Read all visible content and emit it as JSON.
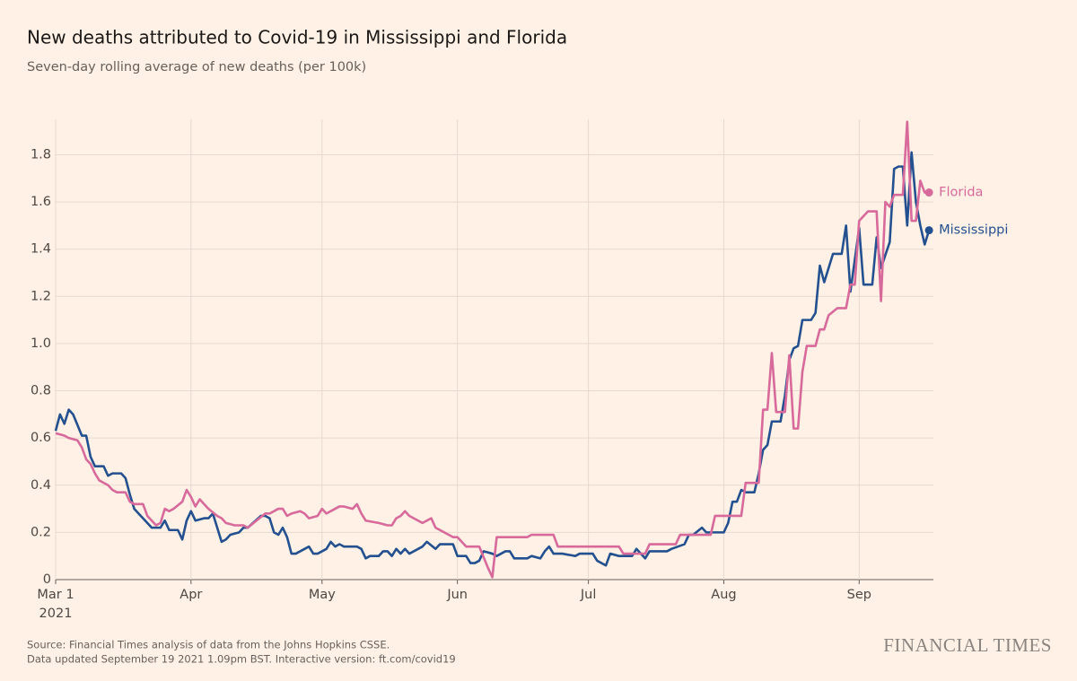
{
  "chart_data": {
    "type": "line",
    "title": "New deaths attributed to Covid-19 in Mississippi and Florida",
    "subtitle": "Seven-day rolling average of new deaths (per 100k)",
    "source": "Source: Financial Times analysis of data from the Johns Hopkins CSSE.",
    "note": "Data updated September 19 2021 1.09pm BST. Interactive version: ft.com/covid19",
    "brand": "FINANCIAL TIMES",
    "xlim": [
      "2021-03-01",
      "2021-09-18"
    ],
    "xticks": [
      {
        "value": "2021-03-01",
        "label": "Mar 1\n2021"
      },
      {
        "value": "2021-04-01",
        "label": "Apr"
      },
      {
        "value": "2021-05-01",
        "label": "May"
      },
      {
        "value": "2021-06-01",
        "label": "Jun"
      },
      {
        "value": "2021-07-01",
        "label": "Jul"
      },
      {
        "value": "2021-08-01",
        "label": "Aug"
      },
      {
        "value": "2021-09-01",
        "label": "Sep"
      }
    ],
    "ylim": [
      0,
      1.95
    ],
    "yticks": [
      0,
      0.2,
      0.4,
      0.6,
      0.8,
      {
        "value": 1,
        "label": "1.0"
      },
      1.2,
      1.4,
      1.6,
      1.8
    ],
    "grid": true,
    "series": [
      {
        "name": "Mississippi",
        "color": "#23508f",
        "x": [
          "2021-03-01",
          "2021-03-02",
          "2021-03-03",
          "2021-03-04",
          "2021-03-05",
          "2021-03-07",
          "2021-03-08",
          "2021-03-09",
          "2021-03-10",
          "2021-03-12",
          "2021-03-13",
          "2021-03-14",
          "2021-03-16",
          "2021-03-17",
          "2021-03-18",
          "2021-03-19",
          "2021-03-21",
          "2021-03-23",
          "2021-03-25",
          "2021-03-26",
          "2021-03-27",
          "2021-03-29",
          "2021-03-30",
          "2021-03-31",
          "2021-04-01",
          "2021-04-02",
          "2021-04-04",
          "2021-04-05",
          "2021-04-06",
          "2021-04-07",
          "2021-04-08",
          "2021-04-09",
          "2021-04-10",
          "2021-04-12",
          "2021-04-13",
          "2021-04-14",
          "2021-04-17",
          "2021-04-18",
          "2021-04-19",
          "2021-04-20",
          "2021-04-21",
          "2021-04-22",
          "2021-04-23",
          "2021-04-24",
          "2021-04-25",
          "2021-04-27",
          "2021-04-28",
          "2021-04-29",
          "2021-04-30",
          "2021-05-02",
          "2021-05-03",
          "2021-05-04",
          "2021-05-05",
          "2021-05-06",
          "2021-05-09",
          "2021-05-10",
          "2021-05-11",
          "2021-05-12",
          "2021-05-14",
          "2021-05-15",
          "2021-05-16",
          "2021-05-17",
          "2021-05-18",
          "2021-05-19",
          "2021-05-20",
          "2021-05-21",
          "2021-05-22",
          "2021-05-24",
          "2021-05-25",
          "2021-05-27",
          "2021-05-28",
          "2021-05-31",
          "2021-06-01",
          "2021-06-03",
          "2021-06-04",
          "2021-06-05",
          "2021-06-06",
          "2021-06-07",
          "2021-06-09",
          "2021-06-10",
          "2021-06-12",
          "2021-06-13",
          "2021-06-14",
          "2021-06-15",
          "2021-06-17",
          "2021-06-18",
          "2021-06-20",
          "2021-06-21",
          "2021-06-22",
          "2021-06-23",
          "2021-06-25",
          "2021-06-28",
          "2021-06-29",
          "2021-07-02",
          "2021-07-03",
          "2021-07-05",
          "2021-07-06",
          "2021-07-08",
          "2021-07-11",
          "2021-07-12",
          "2021-07-14",
          "2021-07-15",
          "2021-07-19",
          "2021-07-20",
          "2021-07-23",
          "2021-07-24",
          "2021-07-25",
          "2021-07-27",
          "2021-07-28",
          "2021-07-29",
          "2021-07-31",
          "2021-08-01",
          "2021-08-02",
          "2021-08-03",
          "2021-08-04",
          "2021-08-05",
          "2021-08-06",
          "2021-08-08",
          "2021-08-09",
          "2021-08-10",
          "2021-08-11",
          "2021-08-12",
          "2021-08-14",
          "2021-08-15",
          "2021-08-16",
          "2021-08-17",
          "2021-08-18",
          "2021-08-19",
          "2021-08-21",
          "2021-08-22",
          "2021-08-23",
          "2021-08-24",
          "2021-08-26",
          "2021-08-28",
          "2021-08-29",
          "2021-08-30",
          "2021-09-01",
          "2021-09-02",
          "2021-09-04",
          "2021-09-05",
          "2021-09-06",
          "2021-09-08",
          "2021-09-09",
          "2021-09-10",
          "2021-09-11",
          "2021-09-12",
          "2021-09-13",
          "2021-09-14",
          "2021-09-15",
          "2021-09-16",
          "2021-09-17"
        ],
        "values": [
          0.63,
          0.7,
          0.66,
          0.72,
          0.7,
          0.61,
          0.61,
          0.52,
          0.48,
          0.48,
          0.44,
          0.45,
          0.45,
          0.43,
          0.36,
          0.3,
          0.26,
          0.22,
          0.22,
          0.25,
          0.21,
          0.21,
          0.17,
          0.25,
          0.29,
          0.25,
          0.26,
          0.26,
          0.28,
          0.22,
          0.16,
          0.17,
          0.19,
          0.2,
          0.22,
          0.22,
          0.27,
          0.27,
          0.26,
          0.2,
          0.19,
          0.22,
          0.18,
          0.11,
          0.11,
          0.13,
          0.14,
          0.11,
          0.11,
          0.13,
          0.16,
          0.14,
          0.15,
          0.14,
          0.14,
          0.13,
          0.09,
          0.1,
          0.1,
          0.12,
          0.12,
          0.1,
          0.13,
          0.11,
          0.13,
          0.11,
          0.12,
          0.14,
          0.16,
          0.13,
          0.15,
          0.15,
          0.1,
          0.1,
          0.07,
          0.07,
          0.08,
          0.12,
          0.11,
          0.1,
          0.12,
          0.12,
          0.09,
          0.09,
          0.09,
          0.1,
          0.09,
          0.12,
          0.14,
          0.11,
          0.11,
          0.1,
          0.11,
          0.11,
          0.08,
          0.06,
          0.11,
          0.1,
          0.1,
          0.13,
          0.09,
          0.12,
          0.12,
          0.13,
          0.15,
          0.19,
          0.19,
          0.22,
          0.2,
          0.2,
          0.2,
          0.2,
          0.24,
          0.33,
          0.33,
          0.38,
          0.37,
          0.37,
          0.45,
          0.55,
          0.57,
          0.67,
          0.67,
          0.78,
          0.93,
          0.98,
          0.99,
          1.1,
          1.1,
          1.13,
          1.33,
          1.26,
          1.38,
          1.38,
          1.5,
          1.22,
          1.49,
          1.25,
          1.25,
          1.45,
          1.32,
          1.43,
          1.74,
          1.75,
          1.75,
          1.5,
          1.81,
          1.6,
          1.5,
          1.42,
          1.48
        ]
      },
      {
        "name": "Florida",
        "color": "#d8699b",
        "x": [
          "2021-03-01",
          "2021-03-03",
          "2021-03-04",
          "2021-03-06",
          "2021-03-07",
          "2021-03-08",
          "2021-03-09",
          "2021-03-10",
          "2021-03-11",
          "2021-03-13",
          "2021-03-14",
          "2021-03-15",
          "2021-03-17",
          "2021-03-18",
          "2021-03-19",
          "2021-03-21",
          "2021-03-22",
          "2021-03-23",
          "2021-03-24",
          "2021-03-25",
          "2021-03-26",
          "2021-03-27",
          "2021-03-28",
          "2021-03-30",
          "2021-03-31",
          "2021-04-01",
          "2021-04-02",
          "2021-04-03",
          "2021-04-04",
          "2021-04-05",
          "2021-04-07",
          "2021-04-08",
          "2021-04-09",
          "2021-04-11",
          "2021-04-13",
          "2021-04-14",
          "2021-04-16",
          "2021-04-18",
          "2021-04-19",
          "2021-04-21",
          "2021-04-22",
          "2021-04-23",
          "2021-04-24",
          "2021-04-26",
          "2021-04-27",
          "2021-04-28",
          "2021-04-30",
          "2021-05-01",
          "2021-05-02",
          "2021-05-04",
          "2021-05-05",
          "2021-05-06",
          "2021-05-08",
          "2021-05-09",
          "2021-05-10",
          "2021-05-11",
          "2021-05-14",
          "2021-05-16",
          "2021-05-17",
          "2021-05-18",
          "2021-05-19",
          "2021-05-20",
          "2021-05-21",
          "2021-05-22",
          "2021-05-24",
          "2021-05-25",
          "2021-05-26",
          "2021-05-27",
          "2021-05-29",
          "2021-05-30",
          "2021-05-31",
          "2021-06-01",
          "2021-06-02",
          "2021-06-03",
          "2021-06-06",
          "2021-06-08",
          "2021-06-09",
          "2021-06-10",
          "2021-06-17",
          "2021-06-18",
          "2021-06-23",
          "2021-06-24",
          "2021-06-30",
          "2021-07-08",
          "2021-07-09",
          "2021-07-14",
          "2021-07-15",
          "2021-07-21",
          "2021-07-22",
          "2021-07-29",
          "2021-07-30",
          "2021-08-05",
          "2021-08-06",
          "2021-08-09",
          "2021-08-10",
          "2021-08-11",
          "2021-08-12",
          "2021-08-13",
          "2021-08-15",
          "2021-08-16",
          "2021-08-17",
          "2021-08-18",
          "2021-08-19",
          "2021-08-20",
          "2021-08-22",
          "2021-08-23",
          "2021-08-24",
          "2021-08-25",
          "2021-08-27",
          "2021-08-29",
          "2021-08-30",
          "2021-08-31",
          "2021-09-01",
          "2021-09-03",
          "2021-09-05",
          "2021-09-06",
          "2021-09-07",
          "2021-09-08",
          "2021-09-09",
          "2021-09-11",
          "2021-09-12",
          "2021-09-13",
          "2021-09-14",
          "2021-09-15",
          "2021-09-16",
          "2021-09-17"
        ],
        "values": [
          0.62,
          0.61,
          0.6,
          0.59,
          0.56,
          0.51,
          0.49,
          0.45,
          0.42,
          0.4,
          0.38,
          0.37,
          0.37,
          0.33,
          0.32,
          0.32,
          0.27,
          0.25,
          0.23,
          0.24,
          0.3,
          0.29,
          0.3,
          0.33,
          0.38,
          0.35,
          0.31,
          0.34,
          0.32,
          0.3,
          0.27,
          0.26,
          0.24,
          0.23,
          0.23,
          0.22,
          0.25,
          0.28,
          0.28,
          0.3,
          0.3,
          0.27,
          0.28,
          0.29,
          0.28,
          0.26,
          0.27,
          0.3,
          0.28,
          0.3,
          0.31,
          0.31,
          0.3,
          0.32,
          0.28,
          0.25,
          0.24,
          0.23,
          0.23,
          0.26,
          0.27,
          0.29,
          0.27,
          0.26,
          0.24,
          0.25,
          0.26,
          0.22,
          0.2,
          0.19,
          0.18,
          0.18,
          0.16,
          0.14,
          0.14,
          0.05,
          0.01,
          0.18,
          0.18,
          0.19,
          0.19,
          0.14,
          0.14,
          0.14,
          0.11,
          0.11,
          0.15,
          0.15,
          0.19,
          0.19,
          0.27,
          0.27,
          0.41,
          0.41,
          0.72,
          0.72,
          0.96,
          0.71,
          0.71,
          0.95,
          0.64,
          0.64,
          0.88,
          0.99,
          0.99,
          1.06,
          1.06,
          1.12,
          1.15,
          1.15,
          1.25,
          1.25,
          1.52,
          1.56,
          1.56,
          1.18,
          1.6,
          1.58,
          1.63,
          1.63,
          1.94,
          1.52,
          1.52,
          1.69,
          1.64,
          1.64
        ]
      }
    ]
  }
}
